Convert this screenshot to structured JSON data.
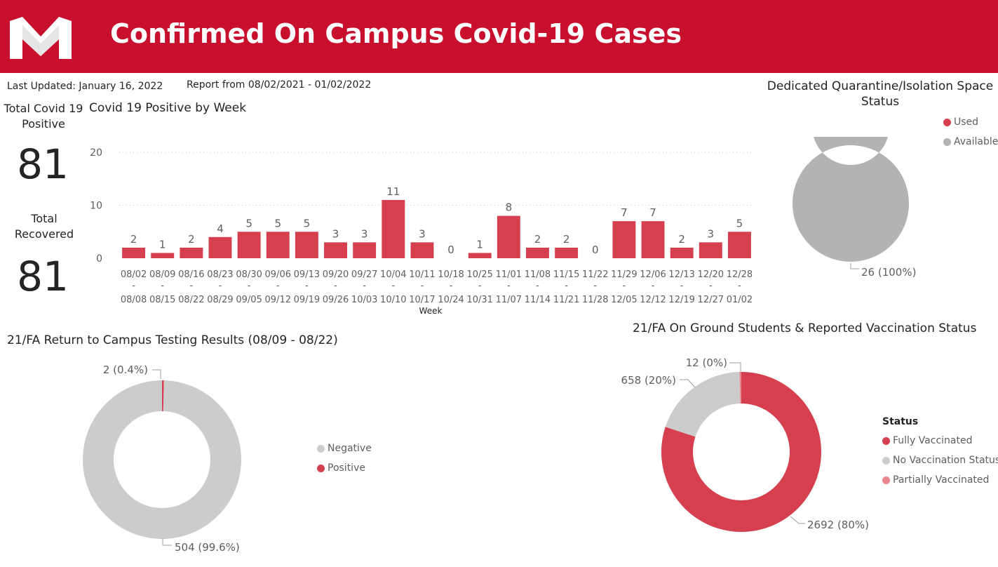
{
  "header": {
    "title": "Confirmed On Campus Covid-19 Cases",
    "logo_letter": "M",
    "brand_color": "#c8102e"
  },
  "info": {
    "last_updated": "Last Updated: January 16, 2022",
    "report_range": "Report from 08/02/2021 - 01/02/2022"
  },
  "cards": {
    "total_positive_label": "Total Covid 19 Positive",
    "total_positive_value": "81",
    "total_recovered_label": "Total Recovered",
    "total_recovered_value": "81"
  },
  "chart_data": [
    {
      "type": "bar",
      "title": "Covid 19 Positive by Week",
      "xlabel": "Week",
      "ylabel": "",
      "ylim": [
        0,
        20
      ],
      "yticks": [
        0,
        10,
        20
      ],
      "grid": true,
      "color": "#d6404e",
      "categories": [
        [
          "08/02",
          "08/08"
        ],
        [
          "08/09",
          "08/15"
        ],
        [
          "08/16",
          "08/22"
        ],
        [
          "08/23",
          "08/29"
        ],
        [
          "08/30",
          "09/05"
        ],
        [
          "09/06",
          "09/12"
        ],
        [
          "09/13",
          "09/19"
        ],
        [
          "09/20",
          "09/26"
        ],
        [
          "09/27",
          "10/03"
        ],
        [
          "10/04",
          "10/10"
        ],
        [
          "10/11",
          "10/17"
        ],
        [
          "10/18",
          "10/24"
        ],
        [
          "10/25",
          "10/31"
        ],
        [
          "11/01",
          "11/07"
        ],
        [
          "11/08",
          "11/14"
        ],
        [
          "11/15",
          "11/21"
        ],
        [
          "11/22",
          "11/28"
        ],
        [
          "11/29",
          "12/05"
        ],
        [
          "12/06",
          "12/12"
        ],
        [
          "12/13",
          "12/19"
        ],
        [
          "12/20",
          "12/27"
        ],
        [
          "12/28",
          "01/02"
        ]
      ],
      "values": [
        2,
        1,
        2,
        4,
        5,
        5,
        5,
        3,
        3,
        11,
        3,
        0,
        1,
        8,
        2,
        2,
        0,
        7,
        7,
        2,
        3,
        5
      ]
    },
    {
      "type": "pie",
      "donut": true,
      "title": "Dedicated Quarantine/Isolation Space Status",
      "legend": "top-right",
      "slices": [
        {
          "label": "Used",
          "value": 0,
          "color": "#d6404e",
          "data_label": ""
        },
        {
          "label": "Available",
          "value": 26,
          "color": "#b3b3b3",
          "data_label": "26 (100%)"
        }
      ]
    },
    {
      "type": "pie",
      "donut": true,
      "title": "21/FA Return to Campus Testing Results (08/09 - 08/22)",
      "legend": "right",
      "slices": [
        {
          "label": "Positive",
          "value": 2,
          "color": "#d6404e",
          "data_label": "2 (0.4%)"
        },
        {
          "label": "Negative",
          "value": 504,
          "color": "#cccccc",
          "data_label": "504 (99.6%)"
        }
      ],
      "legend_order": [
        "Negative",
        "Positive"
      ]
    },
    {
      "type": "pie",
      "donut": true,
      "title": "21/FA On Ground Students & Reported Vaccination Status",
      "legend_title": "Status",
      "legend": "right",
      "slices": [
        {
          "label": "Fully Vaccinated",
          "value": 2692,
          "color": "#d6404e",
          "data_label": "2692 (80%)"
        },
        {
          "label": "No Vaccination Status",
          "value": 658,
          "color": "#cccccc",
          "data_label": "658 (20%)"
        },
        {
          "label": "Partially Vaccinated",
          "value": 12,
          "color": "#e8858f",
          "data_label": "12 (0%)"
        }
      ]
    }
  ]
}
